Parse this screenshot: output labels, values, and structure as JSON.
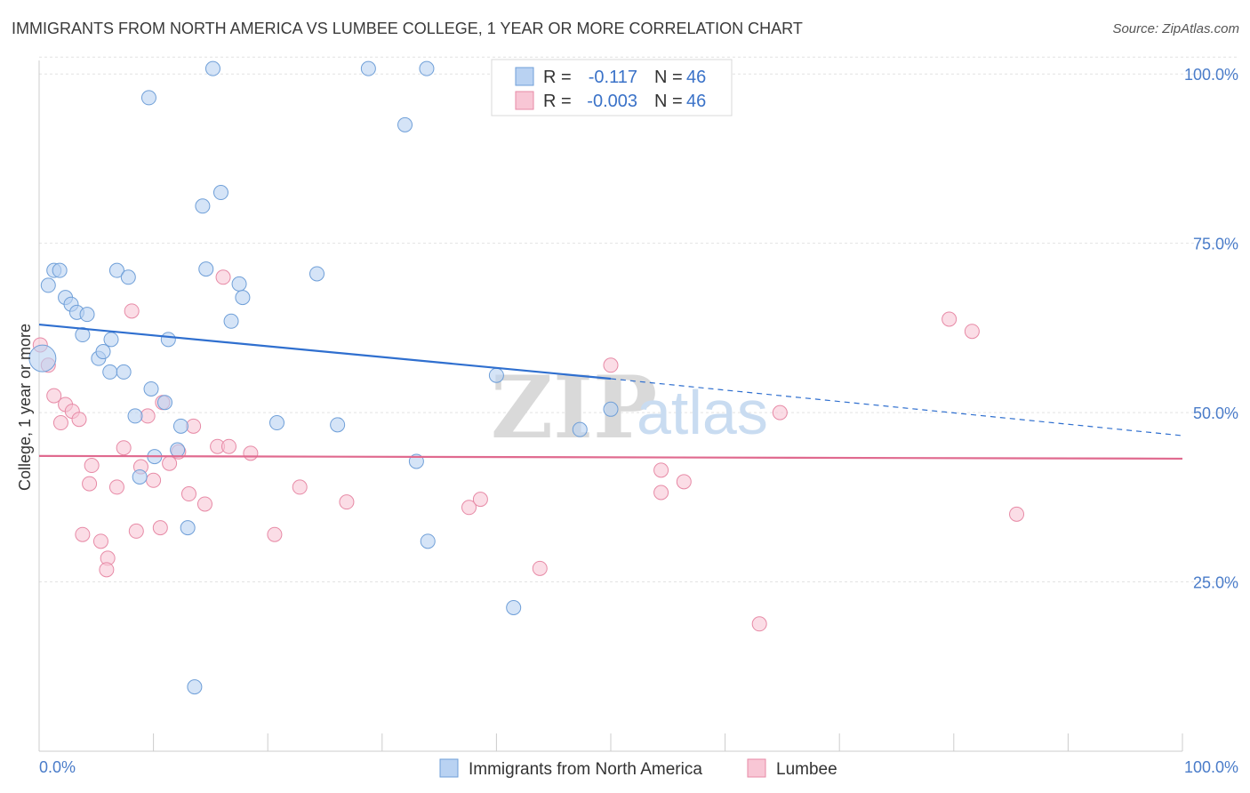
{
  "title": "IMMIGRANTS FROM NORTH AMERICA VS LUMBEE COLLEGE, 1 YEAR OR MORE CORRELATION CHART",
  "source": "Source: ZipAtlas.com",
  "watermark": {
    "zip": "ZIP",
    "atlas": "atlas"
  },
  "colors": {
    "blue_fill": "#b9d2f2",
    "blue_stroke": "#6f9fd8",
    "blue_line": "#2f6fcf",
    "pink_fill": "#f8c6d5",
    "pink_stroke": "#e78aa6",
    "pink_line": "#e06a8f",
    "tick_label": "#4a7cc9",
    "grid": "#e2e2e2"
  },
  "stats": [
    {
      "r_label": "R =",
      "r_value": "-0.117",
      "n_label": "N =",
      "n_value": "46"
    },
    {
      "r_label": "R =",
      "r_value": "-0.003",
      "n_label": "N =",
      "n_value": "46"
    }
  ],
  "chart_data": {
    "type": "scatter",
    "xlabel": "",
    "ylabel": "College, 1 year or more",
    "x_tick_labels": [
      "0.0%",
      "100.0%"
    ],
    "y_tick_labels": [
      "25.0%",
      "50.0%",
      "75.0%",
      "100.0%"
    ],
    "xlim": [
      0,
      100
    ],
    "ylim": [
      0,
      102
    ],
    "y_ticks": [
      25,
      50,
      75,
      100
    ],
    "grid": true,
    "legend_position": "bottom-center",
    "series": [
      {
        "name": "Immigrants from North America",
        "color": "#b9d2f2",
        "trend": {
          "x_solid": [
            0,
            50
          ],
          "y_solid": [
            63.0,
            55.0
          ],
          "x_dashed": [
            50,
            100
          ],
          "y_dashed": [
            55.0,
            46.6
          ]
        },
        "points": [
          {
            "x": 0.3,
            "y": 58.0,
            "big": true
          },
          {
            "x": 0.8,
            "y": 68.8
          },
          {
            "x": 1.3,
            "y": 71.0
          },
          {
            "x": 1.8,
            "y": 71.0
          },
          {
            "x": 2.3,
            "y": 67.0
          },
          {
            "x": 2.8,
            "y": 66.0
          },
          {
            "x": 3.3,
            "y": 64.8
          },
          {
            "x": 4.2,
            "y": 64.5
          },
          {
            "x": 3.8,
            "y": 61.5
          },
          {
            "x": 5.2,
            "y": 58.0
          },
          {
            "x": 5.6,
            "y": 59.0
          },
          {
            "x": 6.2,
            "y": 56.0
          },
          {
            "x": 6.3,
            "y": 60.8
          },
          {
            "x": 7.4,
            "y": 56.0
          },
          {
            "x": 6.8,
            "y": 71.0
          },
          {
            "x": 7.8,
            "y": 70.0
          },
          {
            "x": 8.4,
            "y": 49.5
          },
          {
            "x": 9.6,
            "y": 96.5
          },
          {
            "x": 9.8,
            "y": 53.5
          },
          {
            "x": 11.0,
            "y": 51.5
          },
          {
            "x": 11.3,
            "y": 60.8
          },
          {
            "x": 12.1,
            "y": 44.5
          },
          {
            "x": 12.4,
            "y": 48.0
          },
          {
            "x": 10.1,
            "y": 43.5
          },
          {
            "x": 8.8,
            "y": 40.5
          },
          {
            "x": 13.0,
            "y": 33.0
          },
          {
            "x": 13.6,
            "y": 9.5
          },
          {
            "x": 14.3,
            "y": 80.5
          },
          {
            "x": 14.6,
            "y": 71.2
          },
          {
            "x": 15.2,
            "y": 100.8
          },
          {
            "x": 15.9,
            "y": 82.5
          },
          {
            "x": 16.8,
            "y": 63.5
          },
          {
            "x": 17.5,
            "y": 69.0
          },
          {
            "x": 17.8,
            "y": 67.0
          },
          {
            "x": 20.8,
            "y": 48.5
          },
          {
            "x": 24.3,
            "y": 70.5
          },
          {
            "x": 26.1,
            "y": 48.2
          },
          {
            "x": 28.8,
            "y": 100.8
          },
          {
            "x": 32.0,
            "y": 92.5
          },
          {
            "x": 33.9,
            "y": 100.8
          },
          {
            "x": 33.0,
            "y": 42.8
          },
          {
            "x": 34.0,
            "y": 31.0
          },
          {
            "x": 40.0,
            "y": 55.5
          },
          {
            "x": 41.5,
            "y": 21.2
          },
          {
            "x": 47.3,
            "y": 47.5
          },
          {
            "x": 50.0,
            "y": 50.5
          }
        ]
      },
      {
        "name": "Lumbee",
        "color": "#f8c6d5",
        "trend": {
          "x_solid": [
            0,
            100
          ],
          "y_solid": [
            43.6,
            43.2
          ]
        },
        "points": [
          {
            "x": 0.1,
            "y": 60.0
          },
          {
            "x": 0.8,
            "y": 57.0
          },
          {
            "x": 1.3,
            "y": 52.5
          },
          {
            "x": 1.9,
            "y": 48.5
          },
          {
            "x": 2.3,
            "y": 51.2
          },
          {
            "x": 2.9,
            "y": 50.2
          },
          {
            "x": 3.5,
            "y": 49.0
          },
          {
            "x": 4.4,
            "y": 39.5
          },
          {
            "x": 4.6,
            "y": 42.2
          },
          {
            "x": 3.8,
            "y": 32.0
          },
          {
            "x": 5.4,
            "y": 31.0
          },
          {
            "x": 6.0,
            "y": 28.5
          },
          {
            "x": 5.9,
            "y": 26.8
          },
          {
            "x": 6.8,
            "y": 39.0
          },
          {
            "x": 7.4,
            "y": 44.8
          },
          {
            "x": 8.1,
            "y": 65.0
          },
          {
            "x": 8.5,
            "y": 32.5
          },
          {
            "x": 8.9,
            "y": 42.0
          },
          {
            "x": 9.5,
            "y": 49.5
          },
          {
            "x": 10.0,
            "y": 40.0
          },
          {
            "x": 10.6,
            "y": 33.0
          },
          {
            "x": 10.8,
            "y": 51.5
          },
          {
            "x": 11.4,
            "y": 42.5
          },
          {
            "x": 12.2,
            "y": 44.2
          },
          {
            "x": 13.1,
            "y": 38.0
          },
          {
            "x": 13.5,
            "y": 48.0
          },
          {
            "x": 14.5,
            "y": 36.5
          },
          {
            "x": 15.6,
            "y": 45.0
          },
          {
            "x": 16.1,
            "y": 70.0
          },
          {
            "x": 16.6,
            "y": 45.0
          },
          {
            "x": 18.5,
            "y": 44.0
          },
          {
            "x": 20.6,
            "y": 32.0
          },
          {
            "x": 22.8,
            "y": 39.0
          },
          {
            "x": 26.9,
            "y": 36.8
          },
          {
            "x": 37.6,
            "y": 36.0
          },
          {
            "x": 38.6,
            "y": 37.2
          },
          {
            "x": 43.8,
            "y": 27.0
          },
          {
            "x": 50.0,
            "y": 57.0
          },
          {
            "x": 54.4,
            "y": 41.5
          },
          {
            "x": 54.4,
            "y": 38.2
          },
          {
            "x": 56.4,
            "y": 39.8
          },
          {
            "x": 63.0,
            "y": 18.8
          },
          {
            "x": 64.8,
            "y": 50.0
          },
          {
            "x": 79.6,
            "y": 63.8
          },
          {
            "x": 81.6,
            "y": 62.0
          },
          {
            "x": 85.5,
            "y": 35.0
          }
        ]
      }
    ]
  }
}
